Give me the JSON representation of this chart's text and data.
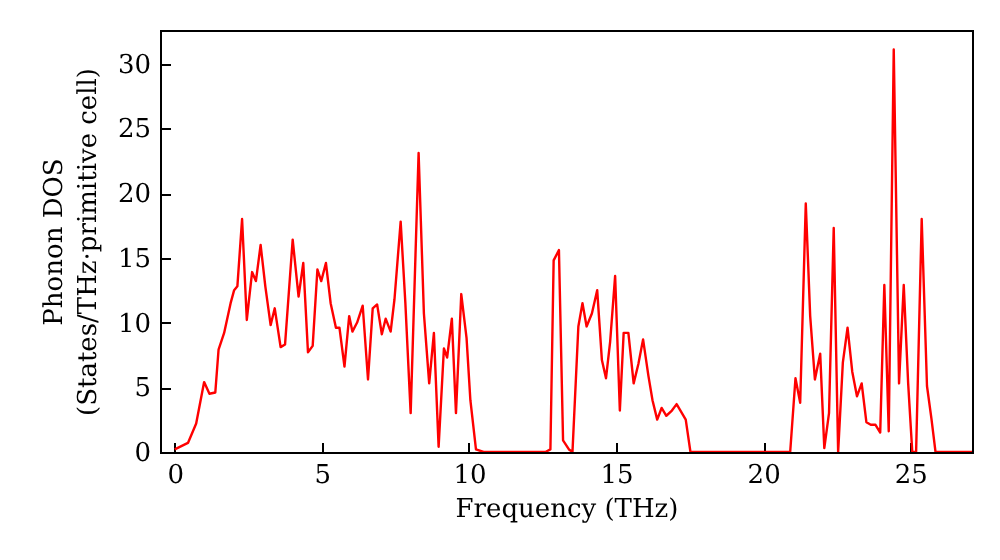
{
  "chart_data": {
    "type": "line",
    "xlabel": "Frequency (THz)",
    "ylabel": "Phonon DOS\n(States/THz·primitive cell)",
    "xlim": [
      -0.5,
      27.1
    ],
    "ylim": [
      0,
      32.6
    ],
    "xticks": [
      0,
      5,
      10,
      15,
      20,
      25
    ],
    "yticks": [
      0,
      5,
      10,
      15,
      20,
      25,
      30
    ],
    "grid": false,
    "x": [
      0,
      0.45,
      0.73,
      1.0,
      1.18,
      1.38,
      1.49,
      1.68,
      1.9,
      2.02,
      2.13,
      2.29,
      2.45,
      2.63,
      2.76,
      2.92,
      3.08,
      3.26,
      3.4,
      3.6,
      3.75,
      4.01,
      4.21,
      4.37,
      4.53,
      4.69,
      4.85,
      4.98,
      5.14,
      5.3,
      5.48,
      5.6,
      5.77,
      5.93,
      6.04,
      6.2,
      6.39,
      6.57,
      6.73,
      6.88,
      7.04,
      7.17,
      7.34,
      7.47,
      7.68,
      7.84,
      8.02,
      8.29,
      8.47,
      8.65,
      8.81,
      8.97,
      9.15,
      9.26,
      9.42,
      9.56,
      9.74,
      9.92,
      10.05,
      10.24,
      10.5,
      12.6,
      12.77,
      12.88,
      13.06,
      13.2,
      13.4,
      13.52,
      13.72,
      13.86,
      14.0,
      14.18,
      14.36,
      14.52,
      14.66,
      14.8,
      14.97,
      15.13,
      15.26,
      15.42,
      15.6,
      15.76,
      15.92,
      16.1,
      16.24,
      16.4,
      16.55,
      16.71,
      16.9,
      17.06,
      17.24,
      17.37,
      17.53,
      17.8,
      20.7,
      20.92,
      21.1,
      21.26,
      21.45,
      21.6,
      21.76,
      21.94,
      22.08,
      22.24,
      22.4,
      22.55,
      22.71,
      22.87,
      23.03,
      23.19,
      23.35,
      23.51,
      23.66,
      23.82,
      23.98,
      24.12,
      24.27,
      24.44,
      24.62,
      24.78,
      24.93,
      25.07,
      25.2,
      25.39,
      25.57,
      25.72,
      25.86,
      27.1
    ],
    "series": [
      {
        "color": "#ff0000",
        "values": [
          0.2,
          0.7,
          2.2,
          5.4,
          4.5,
          4.6,
          7.9,
          9.2,
          11.5,
          12.5,
          12.8,
          18.0,
          10.2,
          13.9,
          13.2,
          16.0,
          12.8,
          9.8,
          11.1,
          8.1,
          8.3,
          16.4,
          12.0,
          14.6,
          7.7,
          8.2,
          14.1,
          13.2,
          14.6,
          11.5,
          9.6,
          9.6,
          6.6,
          10.5,
          9.3,
          10.0,
          11.3,
          5.6,
          11.1,
          11.4,
          9.1,
          10.3,
          9.3,
          11.8,
          17.8,
          11.5,
          3.0,
          23.1,
          10.7,
          5.3,
          9.2,
          0.4,
          8.0,
          7.3,
          10.3,
          3.0,
          12.2,
          8.8,
          4.0,
          0.2,
          0,
          0,
          0.2,
          14.8,
          15.6,
          0.9,
          0.2,
          0,
          9.7,
          11.5,
          9.7,
          10.7,
          12.5,
          7.1,
          5.7,
          8.5,
          13.6,
          3.2,
          9.2,
          9.2,
          5.3,
          6.8,
          8.7,
          5.9,
          4.0,
          2.5,
          3.4,
          2.8,
          3.2,
          3.7,
          3.0,
          2.5,
          0,
          0,
          0,
          0,
          5.7,
          3.8,
          19.2,
          10.5,
          5.6,
          7.6,
          0.3,
          3.0,
          17.3,
          0,
          6.9,
          9.6,
          6.2,
          4.3,
          5.3,
          2.3,
          2.1,
          2.1,
          1.5,
          12.9,
          1.6,
          31.1,
          5.3,
          12.9,
          5.3,
          0,
          0,
          18.0,
          5.1,
          2.6,
          0,
          0
        ]
      }
    ]
  }
}
